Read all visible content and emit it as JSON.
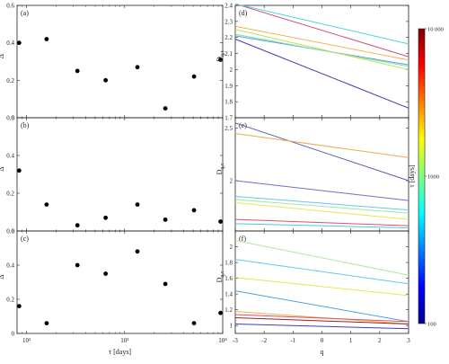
{
  "chart_data": [
    {
      "id": "a",
      "type": "scatter",
      "panel_label": "(a)",
      "ylabel": "Δ",
      "xscale": "log",
      "xlim": [
        80,
        10000
      ],
      "ylim": [
        0,
        0.6
      ],
      "yticks": [
        "0",
        "0.2",
        "0.4",
        "0.6"
      ],
      "points": [
        [
          84,
          0.4
        ],
        [
          160,
          0.42
        ],
        [
          330,
          0.25
        ],
        [
          640,
          0.2
        ],
        [
          1350,
          0.27
        ],
        [
          2600,
          0.05
        ],
        [
          5100,
          0.22
        ],
        [
          9500,
          0.31
        ]
      ]
    },
    {
      "id": "b",
      "type": "scatter",
      "panel_label": "(b)",
      "ylabel": "Δ",
      "xscale": "log",
      "xlim": [
        80,
        10000
      ],
      "ylim": [
        0,
        0.6
      ],
      "yticks": [
        "0",
        "0.2",
        "0.4",
        "0.6"
      ],
      "points": [
        [
          84,
          0.32
        ],
        [
          160,
          0.14
        ],
        [
          330,
          0.03
        ],
        [
          640,
          0.07
        ],
        [
          1350,
          0.14
        ],
        [
          2600,
          0.06
        ],
        [
          5100,
          0.11
        ],
        [
          9500,
          0.05
        ]
      ]
    },
    {
      "id": "c",
      "type": "scatter",
      "panel_label": "(c)",
      "ylabel": "Δ",
      "xlabel": "τ [days]",
      "xscale": "log",
      "xlim": [
        80,
        10000
      ],
      "ylim": [
        0,
        0.6
      ],
      "yticks": [
        "0",
        "0.2",
        "0.4",
        "0.6"
      ],
      "xticks": [
        {
          "value": 100,
          "label": "10²"
        },
        {
          "value": 1000,
          "label": "10³"
        },
        {
          "value": 10000,
          "label": "10⁴"
        }
      ],
      "points": [
        [
          84,
          0.16
        ],
        [
          160,
          0.06
        ],
        [
          330,
          0.4
        ],
        [
          640,
          0.35
        ],
        [
          1350,
          0.48
        ],
        [
          2600,
          0.29
        ],
        [
          5100,
          0.06
        ],
        [
          9500,
          0.12
        ]
      ]
    },
    {
      "id": "d",
      "type": "line",
      "panel_label": "(d)",
      "ylabel": "D_{q,τ}",
      "xlim": [
        -3,
        3
      ],
      "ylim": [
        1.7,
        2.4
      ],
      "yticks": [
        "1.7",
        "1.8",
        "1.9",
        "2",
        "2.1",
        "2.2",
        "2.3",
        "2.4"
      ],
      "series": [
        {
          "color": "#3c3cb4",
          "y": [
            2.19,
            1.76
          ]
        },
        {
          "color": "#5aa0dc",
          "y": [
            2.21,
            2.03
          ]
        },
        {
          "color": "#78dcb4",
          "y": [
            2.22,
            2.02
          ]
        },
        {
          "color": "#c8dc50",
          "y": [
            2.25,
            2.0
          ]
        },
        {
          "color": "#f0b450",
          "y": [
            2.27,
            2.06
          ]
        },
        {
          "color": "#d25078",
          "y": [
            2.41,
            2.08
          ]
        },
        {
          "color": "#50d2e6",
          "y": [
            2.41,
            2.16
          ]
        }
      ]
    },
    {
      "id": "e",
      "type": "line",
      "panel_label": "(e)",
      "ylabel": "D_{q,τ}",
      "xlim": [
        -3,
        3
      ],
      "ylim": [
        1.52,
        2.6
      ],
      "yticks": [
        "1.5",
        "2",
        "2.5"
      ],
      "series": [
        {
          "color": "#5a5ab4",
          "y": [
            2.55,
            2.0
          ]
        },
        {
          "color": "#f0aa50",
          "y": [
            2.45,
            2.22
          ]
        },
        {
          "color": "#7070c8",
          "y": [
            2.0,
            1.81
          ]
        },
        {
          "color": "#64c8e6",
          "y": [
            1.85,
            1.72
          ]
        },
        {
          "color": "#a0e6a0",
          "y": [
            1.82,
            1.69
          ]
        },
        {
          "color": "#e6e650",
          "y": [
            1.79,
            1.63
          ]
        },
        {
          "color": "#dc5064",
          "y": [
            1.63,
            1.57
          ]
        },
        {
          "color": "#50c8dc",
          "y": [
            1.59,
            1.55
          ]
        }
      ]
    },
    {
      "id": "f",
      "type": "line",
      "panel_label": "(f)",
      "ylabel": "D_{q,τ}",
      "xlabel": "q",
      "xlim": [
        -3,
        3
      ],
      "ylim": [
        0.9,
        2.2
      ],
      "yticks": [
        "1",
        "1.2",
        "1.4",
        "1.6",
        "1.8",
        "2"
      ],
      "xticks": [
        {
          "value": -3,
          "label": "-3"
        },
        {
          "value": -2,
          "label": "-2"
        },
        {
          "value": -1,
          "label": "-1"
        },
        {
          "value": 0,
          "label": "0"
        },
        {
          "value": 1,
          "label": "1"
        },
        {
          "value": 2,
          "label": "2"
        },
        {
          "value": 3,
          "label": "3"
        }
      ],
      "series": [
        {
          "color": "#b4e6a0",
          "y": [
            2.08,
            1.64
          ]
        },
        {
          "color": "#64c8e6",
          "y": [
            1.84,
            1.53
          ]
        },
        {
          "color": "#e6e650",
          "y": [
            1.61,
            1.38
          ]
        },
        {
          "color": "#50a0dc",
          "y": [
            1.44,
            1.05
          ]
        },
        {
          "color": "#f0b450",
          "y": [
            1.18,
            1.02
          ]
        },
        {
          "color": "#dc5064",
          "y": [
            1.14,
            1.05
          ]
        },
        {
          "color": "#a01e1e",
          "y": [
            1.1,
            1.02
          ]
        },
        {
          "color": "#3c3cb4",
          "y": [
            1.02,
            0.96
          ]
        }
      ]
    },
    {
      "id": "colorbar",
      "type": "heatmap",
      "label": "τ [days]",
      "scale": "log",
      "range": [
        100,
        10000
      ],
      "ticks": [
        {
          "value": 10000,
          "label": "10 000"
        },
        {
          "value": 1000,
          "label": "1000"
        },
        {
          "value": 100,
          "label": "100"
        }
      ],
      "colors": [
        "#7f0000",
        "#ff0000",
        "#ff8000",
        "#ffff00",
        "#80ff80",
        "#00ffff",
        "#0080ff",
        "#0000ff",
        "#00008f"
      ]
    }
  ]
}
